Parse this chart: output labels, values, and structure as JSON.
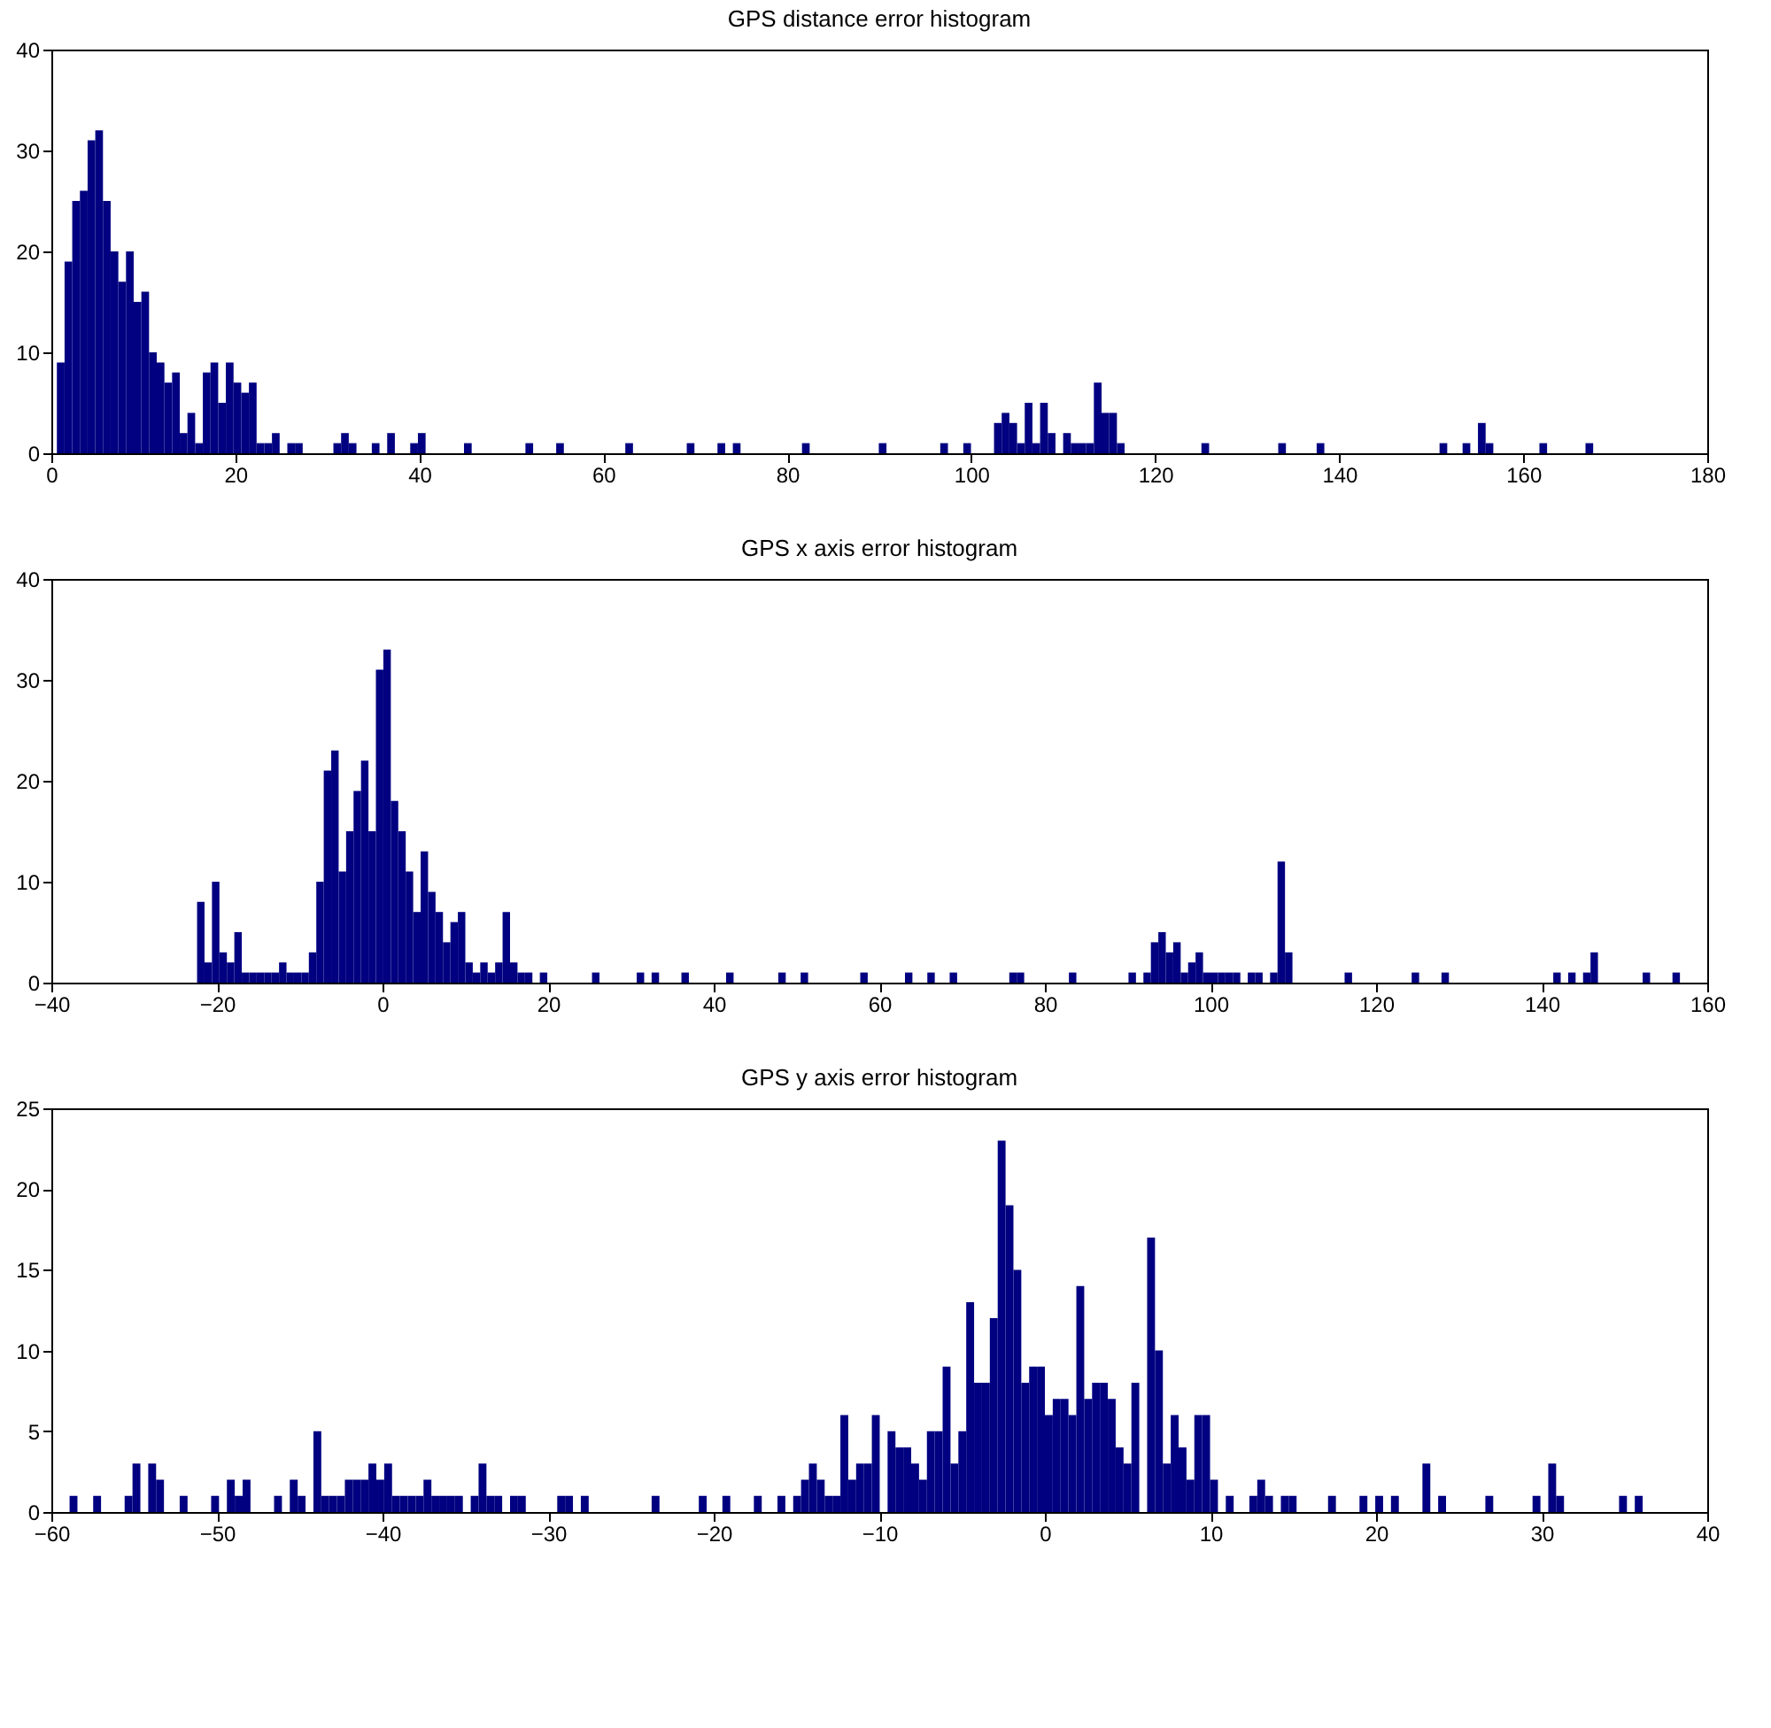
{
  "chart_data": [
    {
      "type": "histogram",
      "title": "GPS distance error histogram",
      "color": "#000080",
      "bins": [
        0.6,
        1.435,
        2.27,
        3.105,
        3.94,
        4.775,
        5.61,
        6.445,
        7.28,
        8.115,
        8.95,
        9.785,
        10.62,
        11.455,
        12.29,
        13.125,
        13.96,
        14.795,
        15.63,
        16.465,
        17.3,
        18.135,
        18.97,
        19.805,
        20.64,
        21.475,
        22.31,
        23.145,
        23.98,
        24.815,
        25.65,
        26.485,
        27.32,
        30.66,
        31.495,
        32.33,
        33.165,
        34.835,
        35.67,
        36.505,
        37.34,
        39.01,
        39.845,
        40.68,
        44.855,
        45.69,
        51.535,
        52.37,
        54.875,
        55.71,
        62.39,
        63.225,
        69.07,
        69.905,
        72.41,
        73.245,
        74.08,
        74.915,
        81.595,
        82.43,
        89.945,
        90.78,
        96.625,
        97.46,
        99.13,
        99.965,
        102.47,
        103.305,
        104.14,
        104.975,
        105.81,
        106.645,
        107.48,
        108.315,
        109.15,
        109.985,
        110.82,
        111.655,
        112.49,
        113.325,
        114.16,
        114.995,
        115.83,
        116.665,
        125.015,
        125.85,
        133.365,
        134.2,
        137.54,
        138.375,
        150.9,
        151.735,
        153.405,
        154.24,
        155.075,
        155.91,
        156.745,
        161.755,
        162.59,
        166.765,
        167.6
      ],
      "values": [
        9,
        19,
        25,
        26,
        31,
        32,
        25,
        20,
        17,
        20,
        15,
        16,
        10,
        9,
        7,
        8,
        2,
        4,
        1,
        8,
        9,
        5,
        9,
        7,
        6,
        7,
        1,
        1,
        2,
        0,
        1,
        1,
        0,
        1,
        2,
        1,
        0,
        1,
        0,
        2,
        0,
        1,
        2,
        0,
        1,
        0,
        1,
        0,
        1,
        0,
        1,
        0,
        1,
        0,
        1,
        0,
        1,
        0,
        1,
        0,
        1,
        0,
        1,
        0,
        1,
        0,
        3,
        4,
        3,
        1,
        5,
        1,
        5,
        2,
        0,
        2,
        1,
        1,
        1,
        7,
        4,
        4,
        1,
        0,
        1,
        0,
        1,
        0,
        1,
        0,
        1,
        0,
        1,
        0,
        3,
        1,
        0,
        1,
        0,
        1
      ],
      "xlim": [
        0,
        180
      ],
      "xticks": [
        0,
        20,
        40,
        60,
        80,
        100,
        120,
        140,
        160,
        180
      ],
      "ylim": [
        0,
        40
      ],
      "yticks": [
        0,
        10,
        20,
        30,
        40
      ]
    },
    {
      "type": "histogram",
      "title": "GPS x axis error histogram",
      "color": "#000080",
      "bins": [
        -22.4,
        -21.5,
        -20.6,
        -19.7,
        -18.8,
        -17.9,
        -17,
        -16.1,
        -15.2,
        -14.3,
        -13.4,
        -12.5,
        -11.6,
        -10.7,
        -9.8,
        -8.9,
        -8,
        -7.1,
        -6.2,
        -5.3,
        -4.4,
        -3.5,
        -2.6,
        -1.7,
        -0.8,
        0.1,
        1,
        1.9,
        2.8,
        3.7,
        4.6,
        5.5,
        6.4,
        7.3,
        8.2,
        9.1,
        10,
        10.9,
        11.8,
        12.7,
        13.6,
        14.5,
        15.4,
        16.3,
        17.2,
        18.1,
        19,
        19.9,
        25.3,
        26.2,
        30.7,
        31.6,
        32.5,
        33.4,
        36.1,
        37,
        41.5,
        42.4,
        47.8,
        48.7,
        50.5,
        51.4,
        57.7,
        58.6,
        63.1,
        64,
        65.8,
        66.7,
        68.5,
        69.4,
        75.7,
        76.6,
        77.5,
        82.9,
        83.8,
        90.1,
        91,
        91.9,
        92.8,
        93.7,
        94.6,
        95.5,
        96.4,
        97.3,
        98.2,
        99.1,
        100,
        100.9,
        101.8,
        102.7,
        103.6,
        104.5,
        105.4,
        106.3,
        107.2,
        108.1,
        109,
        109.9,
        116.2,
        117.1,
        124.3,
        125.2,
        127.9,
        128.8,
        141.4,
        142.3,
        143.2,
        144.1,
        145,
        145.9,
        146.8,
        152.2,
        153.1,
        155.8,
        156.7
      ],
      "values": [
        8,
        2,
        10,
        3,
        2,
        5,
        1,
        1,
        1,
        1,
        1,
        2,
        1,
        1,
        1,
        3,
        10,
        21,
        23,
        11,
        15,
        19,
        22,
        15,
        31,
        33,
        18,
        15,
        11,
        7,
        13,
        9,
        7,
        4,
        6,
        7,
        2,
        1,
        2,
        1,
        2,
        7,
        2,
        1,
        1,
        0,
        1,
        0,
        1,
        0,
        1,
        0,
        1,
        0,
        1,
        0,
        1,
        0,
        1,
        0,
        1,
        0,
        1,
        0,
        1,
        0,
        1,
        0,
        1,
        0,
        1,
        1,
        0,
        1,
        0,
        1,
        0,
        1,
        4,
        5,
        3,
        4,
        1,
        2,
        3,
        1,
        1,
        1,
        1,
        1,
        0,
        1,
        1,
        0,
        1,
        12,
        3,
        0,
        1,
        0,
        1,
        0,
        1,
        0,
        1,
        0,
        1,
        0,
        1,
        3,
        0,
        1,
        0,
        1
      ],
      "xlim": [
        -40,
        160
      ],
      "xticks": [
        -40,
        -20,
        0,
        20,
        40,
        60,
        80,
        100,
        120,
        140,
        160
      ],
      "ylim": [
        0,
        40
      ],
      "yticks": [
        0,
        10,
        20,
        30,
        40
      ]
    },
    {
      "type": "histogram",
      "title": "GPS y axis error histogram",
      "color": "#000080",
      "bins": [
        -58.9,
        -58.425,
        -57.475,
        -57,
        -55.575,
        -55.1,
        -54.625,
        -54.15,
        -53.675,
        -53.2,
        -52.25,
        -51.775,
        -50.35,
        -49.875,
        -49.4,
        -48.925,
        -48.45,
        -47.975,
        -46.55,
        -46.075,
        -45.6,
        -45.125,
        -44.65,
        -44.175,
        -43.7,
        -43.225,
        -42.75,
        -42.275,
        -41.8,
        -41.325,
        -40.85,
        -40.375,
        -39.9,
        -39.425,
        -38.95,
        -38.475,
        -38,
        -37.525,
        -37.05,
        -36.575,
        -36.1,
        -35.625,
        -35.15,
        -34.675,
        -34.2,
        -33.725,
        -33.25,
        -32.775,
        -32.3,
        -31.825,
        -31.35,
        -29.45,
        -28.975,
        -28.5,
        -28.025,
        -27.55,
        -23.75,
        -23.275,
        -20.9,
        -20.425,
        -19.475,
        -19,
        -17.575,
        -17.1,
        -16.15,
        -15.675,
        -15.2,
        -14.725,
        -14.25,
        -13.775,
        -13.3,
        -12.825,
        -12.35,
        -11.875,
        -11.4,
        -10.925,
        -10.45,
        -9.975,
        -9.5,
        -9.025,
        -8.55,
        -8.075,
        -7.6,
        -7.125,
        -6.65,
        -6.175,
        -5.7,
        -5.225,
        -4.75,
        -4.275,
        -3.8,
        -3.325,
        -2.85,
        -2.375,
        -1.9,
        -1.425,
        -0.95,
        -0.475,
        0,
        0.475,
        0.95,
        1.425,
        1.9,
        2.375,
        2.85,
        3.325,
        3.8,
        4.275,
        4.75,
        5.225,
        5.7,
        6.175,
        6.65,
        7.125,
        7.6,
        8.075,
        8.55,
        9.025,
        9.5,
        9.975,
        10.45,
        10.925,
        11.4,
        12.35,
        12.825,
        13.3,
        13.775,
        14.25,
        14.725,
        15.2,
        17.1,
        17.575,
        19,
        19.475,
        19.95,
        20.425,
        20.9,
        21.375,
        22.8,
        23.275,
        23.75,
        24.225,
        26.6,
        27.075,
        29.45,
        29.925,
        30.4,
        30.875,
        31.35,
        34.675,
        35.15,
        35.625,
        36.1
      ],
      "values": [
        1,
        0,
        1,
        0,
        1,
        3,
        0,
        3,
        2,
        0,
        1,
        0,
        1,
        0,
        2,
        1,
        2,
        0,
        1,
        0,
        2,
        1,
        0,
        5,
        1,
        1,
        1,
        2,
        2,
        2,
        3,
        2,
        3,
        1,
        1,
        1,
        1,
        2,
        1,
        1,
        1,
        1,
        0,
        1,
        3,
        1,
        1,
        0,
        1,
        1,
        0,
        1,
        1,
        0,
        1,
        0,
        1,
        0,
        1,
        0,
        1,
        0,
        1,
        0,
        1,
        0,
        1,
        2,
        3,
        2,
        1,
        1,
        6,
        2,
        3,
        3,
        6,
        0,
        5,
        4,
        4,
        3,
        2,
        5,
        5,
        9,
        3,
        5,
        13,
        8,
        8,
        12,
        23,
        19,
        15,
        8,
        9,
        9,
        6,
        7,
        7,
        6,
        14,
        7,
        8,
        8,
        7,
        4,
        3,
        8,
        0,
        17,
        10,
        3,
        6,
        4,
        2,
        6,
        6,
        2,
        0,
        1,
        0,
        1,
        2,
        1,
        0,
        1,
        1,
        0,
        1,
        0,
        1,
        0,
        1,
        0,
        1,
        0,
        3,
        0,
        1,
        0,
        1,
        0,
        1,
        0,
        3,
        1,
        0,
        1,
        0,
        1
      ],
      "xlim": [
        -60,
        40
      ],
      "xticks": [
        -60,
        -50,
        -40,
        -30,
        -20,
        -10,
        0,
        10,
        20,
        30,
        40
      ],
      "ylim": [
        0,
        25
      ],
      "yticks": [
        0,
        5,
        10,
        15,
        20,
        25
      ]
    }
  ]
}
